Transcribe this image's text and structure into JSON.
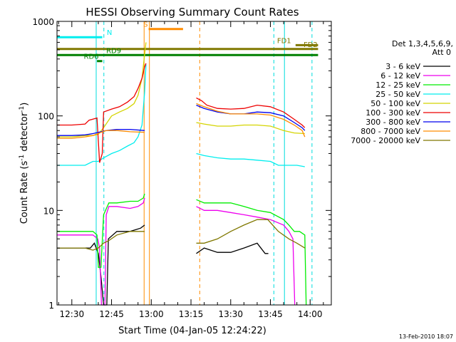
{
  "chart_data": {
    "type": "line",
    "title": "HESSI Observing Summary Count Rates",
    "xlabel": "Start Time (04-Jan-05 12:24:22)",
    "ylabel_main": "Count Rate (s",
    "ylabel_sup1": "-1",
    "ylabel_mid": " detector",
    "ylabel_sup2": "-1",
    "ylabel_end": ")",
    "y_scale": "log",
    "ylim": [
      1,
      1000
    ],
    "xlim_minutes": [
      24.4,
      128
    ],
    "x_ticks": [
      {
        "minute": 30,
        "label": "12:30"
      },
      {
        "minute": 45,
        "label": "12:45"
      },
      {
        "minute": 60,
        "label": "13:00"
      },
      {
        "minute": 75,
        "label": "13:15"
      },
      {
        "minute": 90,
        "label": "13:30"
      },
      {
        "minute": 105,
        "label": "13:45"
      },
      {
        "minute": 120,
        "label": "14:00"
      }
    ],
    "y_ticks": [
      {
        "value": 1,
        "label": "1"
      },
      {
        "value": 10,
        "label": "10"
      },
      {
        "value": 100,
        "label": "100"
      },
      {
        "value": 1000,
        "label": "1000"
      }
    ],
    "legend_title_1": "Det 1,3,4,5,6,9,",
    "legend_title_2": "Att 0",
    "legend_placement": "right",
    "series": [
      {
        "name": "3 - 6 keV",
        "color": "#000000",
        "segments": [
          [
            [
              24.4,
              4.0
            ],
            [
              37,
              4.0
            ],
            [
              38.5,
              4.5
            ],
            [
              40,
              3.5
            ],
            [
              41,
              2.0
            ],
            [
              42,
              1.0
            ],
            [
              43.2,
              1.0
            ],
            [
              43.8,
              5.0
            ],
            [
              47,
              6.0
            ],
            [
              52,
              6.0
            ],
            [
              56,
              6.5
            ],
            [
              57.5,
              7.0
            ]
          ],
          [
            [
              77,
              3.5
            ],
            [
              80,
              4.0
            ],
            [
              85,
              3.6
            ],
            [
              90,
              3.6
            ],
            [
              95,
              4.0
            ],
            [
              100,
              4.5
            ],
            [
              103,
              3.5
            ],
            [
              104.2,
              3.5
            ]
          ]
        ]
      },
      {
        "name": "6 - 12 keV",
        "color": "#ee00ee",
        "segments": [
          [
            [
              24.4,
              5.5
            ],
            [
              38,
              5.5
            ],
            [
              39.8,
              5.0
            ],
            [
              40.5,
              4.0
            ],
            [
              41.2,
              1.0
            ],
            [
              42.5,
              1.0
            ],
            [
              43,
              9.0
            ],
            [
              44,
              11
            ],
            [
              47,
              11
            ],
            [
              52,
              10.5
            ],
            [
              55,
              11
            ],
            [
              57,
              12
            ],
            [
              57.5,
              13.5
            ]
          ],
          [
            [
              77,
              11
            ],
            [
              80,
              10
            ],
            [
              85,
              10
            ],
            [
              90,
              9.5
            ],
            [
              95,
              9
            ],
            [
              100,
              8.5
            ],
            [
              105,
              8
            ],
            [
              110,
              7.0
            ],
            [
              112,
              6.0
            ],
            [
              113.5,
              5.0
            ],
            [
              114.2,
              1.0
            ]
          ]
        ]
      },
      {
        "name": "12 - 25 keV",
        "color": "#00ee00",
        "segments": [
          [
            [
              24.4,
              6.0
            ],
            [
              38,
              6.0
            ],
            [
              39.5,
              5.5
            ],
            [
              40,
              2.5
            ],
            [
              41,
              2.5
            ],
            [
              42,
              9.0
            ],
            [
              44,
              12
            ],
            [
              47,
              12
            ],
            [
              52,
              12.5
            ],
            [
              55,
              12.5
            ],
            [
              57,
              13.5
            ],
            [
              57.5,
              15
            ]
          ],
          [
            [
              77,
              13
            ],
            [
              80,
              12
            ],
            [
              85,
              12
            ],
            [
              90,
              12
            ],
            [
              95,
              11
            ],
            [
              100,
              10
            ],
            [
              105,
              9.5
            ],
            [
              110,
              8
            ],
            [
              112,
              7
            ],
            [
              114,
              6.0
            ],
            [
              116,
              6.0
            ],
            [
              118,
              5.5
            ],
            [
              118.5,
              1.0
            ]
          ]
        ]
      },
      {
        "name": "25 - 50 keV",
        "color": "#00eeee",
        "segments": [
          [
            [
              24.4,
              30
            ],
            [
              30,
              30
            ],
            [
              35,
              30
            ],
            [
              38,
              33
            ],
            [
              40,
              33
            ],
            [
              42,
              36
            ],
            [
              45,
              40
            ],
            [
              48,
              43
            ],
            [
              51,
              48
            ],
            [
              53.5,
              52
            ],
            [
              55,
              60
            ],
            [
              56.5,
              80
            ],
            [
              57.5,
              180
            ],
            [
              58,
              350
            ]
          ],
          [
            [
              77,
              40
            ],
            [
              80,
              38
            ],
            [
              85,
              36
            ],
            [
              90,
              35
            ],
            [
              95,
              35
            ],
            [
              100,
              34
            ],
            [
              105,
              33
            ],
            [
              108,
              30
            ],
            [
              110,
              30
            ],
            [
              115,
              30
            ],
            [
              118,
              29
            ]
          ]
        ]
      },
      {
        "name": "50 - 100 keV",
        "color": "#d4d400",
        "segments": [
          [
            [
              24.4,
              60
            ],
            [
              30,
              60
            ],
            [
              35,
              62
            ],
            [
              38,
              62
            ],
            [
              40,
              64
            ],
            [
              42,
              75
            ],
            [
              45,
              100
            ],
            [
              48,
              110
            ],
            [
              51,
              120
            ],
            [
              53.5,
              135
            ],
            [
              55,
              165
            ],
            [
              56.5,
              250
            ],
            [
              57.5,
              450
            ],
            [
              58,
              600
            ]
          ],
          [
            [
              77,
              85
            ],
            [
              80,
              82
            ],
            [
              85,
              78
            ],
            [
              90,
              78
            ],
            [
              95,
              80
            ],
            [
              100,
              80
            ],
            [
              105,
              78
            ],
            [
              110,
              70
            ],
            [
              114,
              66
            ],
            [
              118,
              65
            ]
          ]
        ]
      },
      {
        "name": "100 - 300 keV",
        "color": "#ee0000",
        "segments": [
          [
            [
              24.4,
              80
            ],
            [
              30,
              80
            ],
            [
              35,
              82
            ],
            [
              36.5,
              90
            ],
            [
              39.5,
              95
            ],
            [
              40.5,
              32
            ],
            [
              41.5,
              40
            ],
            [
              42,
              110
            ],
            [
              45,
              118
            ],
            [
              48,
              125
            ],
            [
              51,
              140
            ],
            [
              53.5,
              160
            ],
            [
              55,
              195
            ],
            [
              56.5,
              250
            ],
            [
              57.5,
              330
            ],
            [
              58,
              360
            ]
          ],
          [
            [
              77,
              155
            ],
            [
              79,
              145
            ],
            [
              81,
              130
            ],
            [
              85,
              120
            ],
            [
              90,
              118
            ],
            [
              95,
              120
            ],
            [
              100,
              130
            ],
            [
              105,
              125
            ],
            [
              110,
              110
            ],
            [
              114,
              92
            ],
            [
              117,
              80
            ],
            [
              118,
              75
            ]
          ]
        ]
      },
      {
        "name": "300 - 800 keV",
        "color": "#0000ee",
        "segments": [
          [
            [
              24.4,
              62
            ],
            [
              30,
              62
            ],
            [
              35,
              63
            ],
            [
              38,
              65
            ],
            [
              41,
              68
            ],
            [
              43,
              70
            ],
            [
              47,
              72
            ],
            [
              52,
              72
            ],
            [
              57.5,
              70
            ]
          ],
          [
            [
              77,
              130
            ],
            [
              80,
              120
            ],
            [
              85,
              110
            ],
            [
              90,
              105
            ],
            [
              95,
              105
            ],
            [
              100,
              110
            ],
            [
              105,
              108
            ],
            [
              110,
              100
            ],
            [
              114,
              85
            ],
            [
              117,
              75
            ],
            [
              118,
              70
            ]
          ]
        ]
      },
      {
        "name": "800 - 7000 keV",
        "color": "#ff8c00",
        "segments": [
          [
            [
              24.4,
              58
            ],
            [
              30,
              58
            ],
            [
              35,
              60
            ],
            [
              38,
              62
            ],
            [
              41,
              67
            ],
            [
              43,
              70
            ],
            [
              47,
              70
            ],
            [
              52,
              68
            ],
            [
              57.5,
              67
            ]
          ],
          [
            [
              77,
              135
            ],
            [
              80,
              125
            ],
            [
              85,
              112
            ],
            [
              90,
              105
            ],
            [
              95,
              105
            ],
            [
              100,
              105
            ],
            [
              105,
              102
            ],
            [
              110,
              92
            ],
            [
              114,
              80
            ],
            [
              117,
              70
            ],
            [
              118,
              60
            ]
          ]
        ]
      },
      {
        "name": "7000 - 20000 keV",
        "color": "#807800",
        "segments": [
          [
            [
              24.4,
              4.0
            ],
            [
              30,
              4.0
            ],
            [
              35,
              4.0
            ],
            [
              38,
              3.8
            ],
            [
              40,
              4.0
            ],
            [
              42,
              4.5
            ],
            [
              44,
              4.8
            ],
            [
              47,
              5.5
            ],
            [
              52,
              6.0
            ],
            [
              57.5,
              6.0
            ]
          ],
          [
            [
              77,
              4.5
            ],
            [
              80,
              4.5
            ],
            [
              85,
              5.0
            ],
            [
              90,
              6.0
            ],
            [
              95,
              7.0
            ],
            [
              100,
              8.0
            ],
            [
              104,
              8.0
            ],
            [
              108,
              6.0
            ],
            [
              112,
              5.0
            ],
            [
              115,
              4.5
            ],
            [
              118,
              4.0
            ]
          ]
        ]
      }
    ],
    "annotations": [
      {
        "label": "N",
        "color": "#00eeee",
        "x1": 24.4,
        "x2": 41.5,
        "y": 680,
        "text_at": 43.2
      },
      {
        "label": "FD1",
        "color": "#807800",
        "x1": 114.5,
        "x2": 123,
        "y": 560,
        "text_at": 107.5
      },
      {
        "label": "FD2",
        "color": "#807800",
        "x1": 24.4,
        "x2": 123,
        "y": 510,
        "text_at": 117.5
      },
      {
        "label": "RD9",
        "color": "#008000",
        "x1": 24.4,
        "x2": 123,
        "y": 440,
        "text_at": 43
      },
      {
        "label": "RD6",
        "color": "#008000",
        "x1": 39.5,
        "x2": 41.5,
        "y": 380,
        "text_at": 34.5
      },
      {
        "label": "S",
        "color": "#ff8c00",
        "x1": 59,
        "x2": 72,
        "y": 830,
        "text_at": 57
      }
    ],
    "cyan_solid_x": [
      39.2,
      110.3
    ],
    "cyan_dashed_x": [
      42.1,
      106.3,
      120.7
    ],
    "orange_solid_x": [
      57.3,
      59.3
    ],
    "orange_dashed_x": [
      78.3
    ],
    "footer_date": "13-Feb-2010 18:07"
  }
}
